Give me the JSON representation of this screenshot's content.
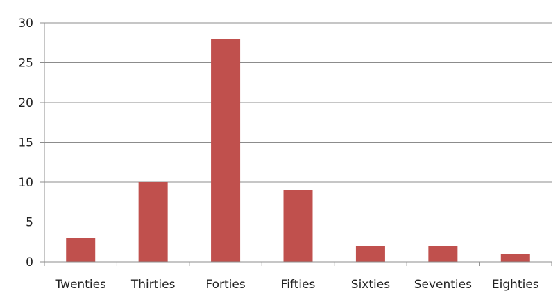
{
  "chart_data": {
    "type": "bar",
    "categories": [
      "Twenties",
      "Thirties",
      "Forties",
      "Fifties",
      "Sixties",
      "Seventies",
      "Eighties"
    ],
    "values": [
      3,
      10,
      28,
      9,
      2,
      2,
      1
    ],
    "title": "",
    "xlabel": "",
    "ylabel": "",
    "ylim": [
      0,
      30
    ],
    "yticks": [
      0,
      5,
      10,
      15,
      20,
      25,
      30
    ],
    "grid": true,
    "legend": "none",
    "bar_color": "#c0504d",
    "grid_color": "#8c8c8c",
    "axis_color": "#8c8c8c"
  }
}
